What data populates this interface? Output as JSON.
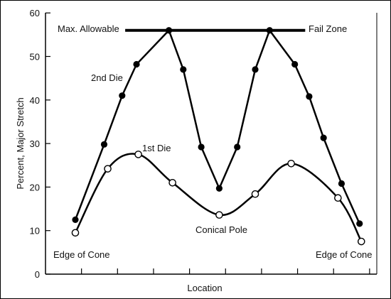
{
  "chart_data": {
    "type": "line",
    "xlabel": "Location",
    "ylabel": "Percent, Major Stretch",
    "ylim": [
      0,
      60
    ],
    "yticks": [
      "0",
      "10",
      "20",
      "30",
      "40",
      "50",
      "60"
    ],
    "xlim": [
      0,
      17
    ],
    "grid": false,
    "series": [
      {
        "name": "2nd Die",
        "marker": "filled-circle",
        "x": [
          0,
          1.6,
          2.6,
          3.4,
          5.2,
          6.0,
          7.0,
          8.0,
          9.0,
          10.0,
          10.8,
          12.2,
          13.0,
          13.8,
          14.8,
          15.8
        ],
        "y": [
          12.5,
          29.8,
          41.0,
          48.2,
          56.0,
          47.0,
          29.2,
          19.7,
          29.2,
          47.0,
          56.0,
          48.2,
          40.8,
          31.3,
          20.8,
          11.6
        ]
      },
      {
        "name": "1st Die",
        "marker": "open-circle",
        "x": [
          0,
          1.8,
          3.5,
          5.4,
          8.0,
          10.0,
          12.0,
          14.6,
          15.9
        ],
        "y": [
          9.5,
          24.2,
          27.5,
          21.0,
          13.6,
          18.4,
          25.4,
          17.5,
          7.5
        ]
      }
    ],
    "threshold": {
      "y": 56,
      "x": [
        2.85,
        12.7
      ],
      "label_left": "Max. Allowable",
      "label_right": "Fail Zone"
    },
    "annotations": {
      "edge_left": "Edge of Cone",
      "edge_right": "Edge of Cone",
      "center": "Conical Pole"
    }
  }
}
